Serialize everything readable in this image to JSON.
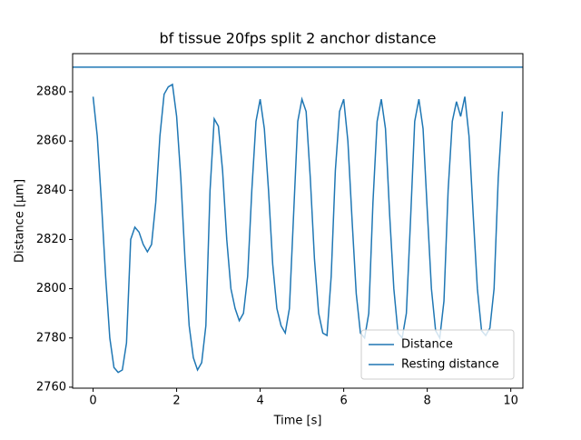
{
  "chart_data": {
    "type": "line",
    "title": "bf tissue 20fps split 2 anchor distance",
    "xlabel": "Time [s]",
    "ylabel": "Distance [µm]",
    "x": [
      0,
      0.1,
      0.2,
      0.3,
      0.4,
      0.5,
      0.6,
      0.7,
      0.8,
      0.9,
      1,
      1.1,
      1.2,
      1.3,
      1.4,
      1.5,
      1.6,
      1.7,
      1.8,
      1.9,
      2,
      2.1,
      2.2,
      2.3,
      2.4,
      2.5,
      2.6,
      2.7,
      2.8,
      2.9,
      3,
      3.1,
      3.2,
      3.3,
      3.4,
      3.5,
      3.6,
      3.7,
      3.8,
      3.9,
      4,
      4.1,
      4.2,
      4.3,
      4.4,
      4.5,
      4.6,
      4.7,
      4.8,
      4.9,
      5,
      5.1,
      5.2,
      5.3,
      5.4,
      5.5,
      5.6,
      5.7,
      5.8,
      5.9,
      6,
      6.1,
      6.2,
      6.3,
      6.4,
      6.5,
      6.6,
      6.7,
      6.8,
      6.9,
      7,
      7.1,
      7.2,
      7.3,
      7.4,
      7.5,
      7.6,
      7.7,
      7.8,
      7.9,
      8,
      8.1,
      8.2,
      8.3,
      8.4,
      8.5,
      8.6,
      8.7,
      8.8,
      8.9,
      9,
      9.1,
      9.2,
      9.3,
      9.4,
      9.5,
      9.6,
      9.7,
      9.8
    ],
    "series": [
      {
        "name": "Distance",
        "color": "#1f77b4",
        "values": [
          2878,
          2862,
          2835,
          2805,
          2780,
          2768,
          2766,
          2767,
          2778,
          2820,
          2825,
          2823,
          2818,
          2815,
          2818,
          2835,
          2862,
          2879,
          2882,
          2883,
          2870,
          2845,
          2812,
          2785,
          2772,
          2767,
          2770,
          2785,
          2840,
          2869,
          2866,
          2848,
          2820,
          2800,
          2792,
          2787,
          2790,
          2805,
          2840,
          2868,
          2877,
          2865,
          2840,
          2810,
          2792,
          2785,
          2782,
          2792,
          2830,
          2868,
          2877,
          2872,
          2845,
          2812,
          2790,
          2782,
          2781,
          2805,
          2848,
          2872,
          2877,
          2860,
          2828,
          2798,
          2782,
          2780,
          2790,
          2835,
          2868,
          2877,
          2865,
          2830,
          2800,
          2782,
          2780,
          2790,
          2828,
          2868,
          2877,
          2865,
          2832,
          2800,
          2783,
          2780,
          2795,
          2840,
          2868,
          2876,
          2870,
          2878,
          2862,
          2830,
          2800,
          2783,
          2781,
          2784,
          2800,
          2845,
          2872
        ]
      }
    ],
    "hlines": [
      {
        "name": "Resting distance",
        "value": 2890,
        "color": "#1f77b4"
      }
    ],
    "xlim": [
      -0.49,
      10.29
    ],
    "ylim": [
      2759.6,
      2895.5
    ],
    "xticks": [
      0,
      2,
      4,
      6,
      8,
      10
    ],
    "yticks": [
      2760,
      2780,
      2800,
      2820,
      2840,
      2860,
      2880
    ],
    "legend": "lower right"
  }
}
